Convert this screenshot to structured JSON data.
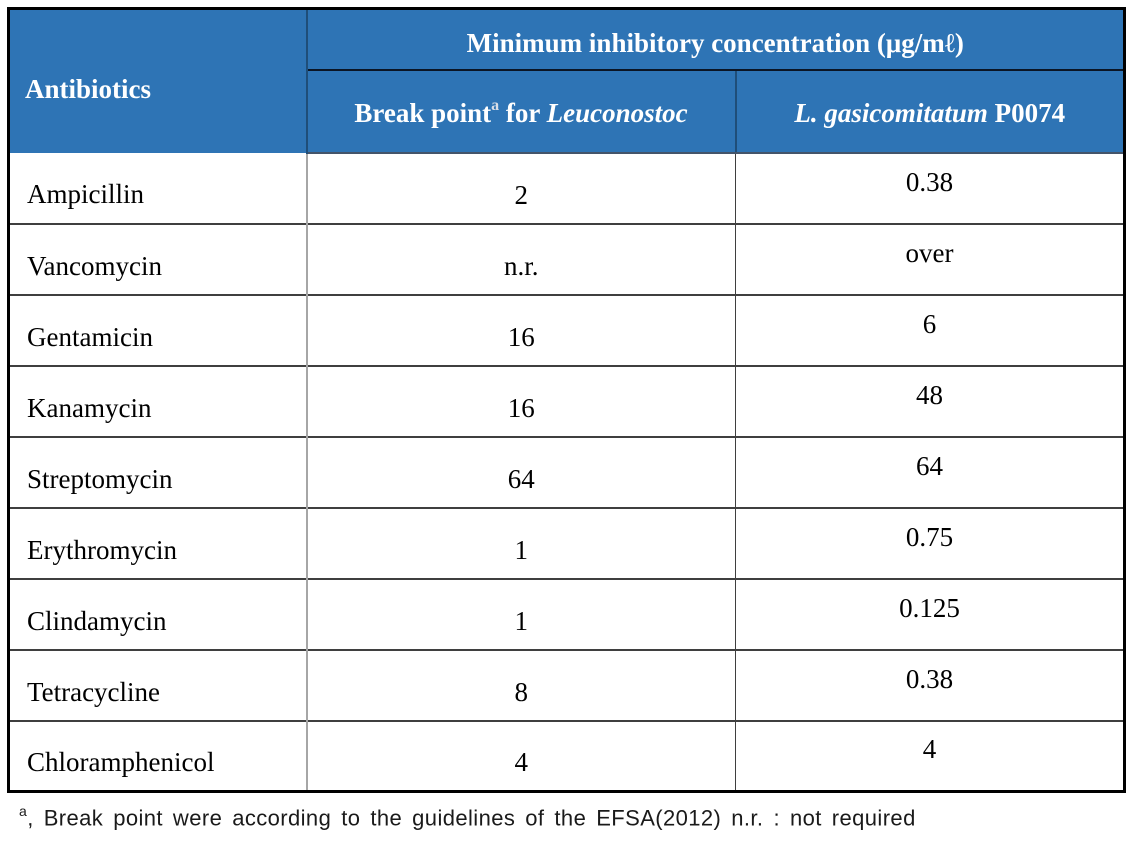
{
  "table": {
    "header": {
      "antibiotics_label": "Antibiotics",
      "mic_title": "Minimum inhibitory concentration (μg/mℓ)",
      "breakpoint": {
        "text": "Break point",
        "sup": "a",
        "conjunction": " for ",
        "species": "Leuconostoc"
      },
      "strain": {
        "species": "L. gasicomitatum",
        "code": " P0074"
      }
    },
    "rows": [
      {
        "antibiotic": "Ampicillin",
        "breakpoint": "2",
        "mic": "0.38"
      },
      {
        "antibiotic": "Vancomycin",
        "breakpoint": "n.r.",
        "mic": "over"
      },
      {
        "antibiotic": "Gentamicin",
        "breakpoint": "16",
        "mic": "6"
      },
      {
        "antibiotic": "Kanamycin",
        "breakpoint": "16",
        "mic": "48"
      },
      {
        "antibiotic": "Streptomycin",
        "breakpoint": "64",
        "mic": "64"
      },
      {
        "antibiotic": "Erythromycin",
        "breakpoint": "1",
        "mic": "0.75"
      },
      {
        "antibiotic": "Clindamycin",
        "breakpoint": "1",
        "mic": "0.125"
      },
      {
        "antibiotic": "Tetracycline",
        "breakpoint": "8",
        "mic": "0.38"
      },
      {
        "antibiotic": "Chloramphenicol",
        "breakpoint": "4",
        "mic": "4"
      }
    ]
  },
  "footnote": {
    "sup": "a",
    "text": ", Break point were according to the guidelines of the EFSA(2012) n.r. : not required"
  },
  "colors": {
    "header_bg": "#2E74B5",
    "header_text": "#FFFFFF",
    "header_divider": "#1F4E79",
    "header_bottom_line": "#44546A",
    "body_line": "#3F3F3F",
    "light_divider": "#A6A6A6",
    "outer_border": "#000000"
  }
}
